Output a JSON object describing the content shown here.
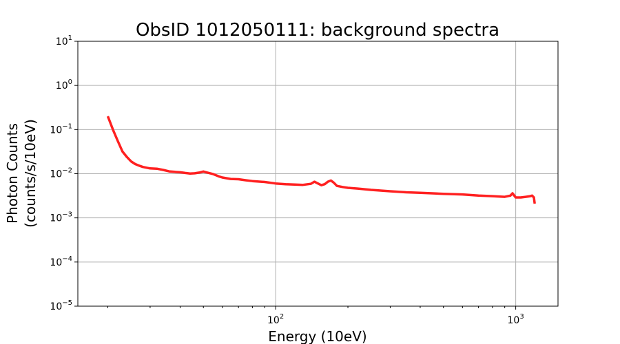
{
  "chart_data": {
    "type": "line",
    "title": "ObsID 1012050111: background spectra",
    "xlabel": "Energy (10eV)",
    "ylabel_line1": "Photon Counts",
    "ylabel_line2": "(counts/s/10eV)",
    "xscale": "log",
    "yscale": "log",
    "xlim": [
      15,
      1500
    ],
    "ylim": [
      1e-05,
      10
    ],
    "grid": true,
    "x_ticks": [
      {
        "base": "10",
        "exp": "2",
        "value": 100
      },
      {
        "base": "10",
        "exp": "3",
        "value": 1000
      }
    ],
    "y_ticks": [
      {
        "base": "10",
        "exp": "1",
        "value": 10
      },
      {
        "base": "10",
        "exp": "0",
        "value": 1
      },
      {
        "base": "10",
        "exp": "−1",
        "value": 0.1
      },
      {
        "base": "10",
        "exp": "−2",
        "value": 0.01
      },
      {
        "base": "10",
        "exp": "−3",
        "value": 0.001
      },
      {
        "base": "10",
        "exp": "−4",
        "value": 0.0001
      },
      {
        "base": "10",
        "exp": "−5",
        "value": 1e-05
      }
    ],
    "series": [
      {
        "color": "#ff2020",
        "x": [
          20,
          21,
          22,
          23,
          24,
          25,
          26,
          27,
          28,
          30,
          32,
          34,
          36,
          38,
          40,
          42,
          44,
          46,
          48,
          50,
          52,
          55,
          58,
          60,
          65,
          70,
          75,
          80,
          90,
          100,
          110,
          120,
          130,
          140,
          145,
          150,
          155,
          160,
          165,
          170,
          175,
          180,
          190,
          200,
          220,
          250,
          280,
          300,
          350,
          400,
          450,
          500,
          600,
          700,
          800,
          900,
          950,
          970,
          1000,
          1050,
          1100,
          1150,
          1170,
          1190,
          1200
        ],
        "y": [
          0.2,
          0.1,
          0.055,
          0.032,
          0.024,
          0.019,
          0.0165,
          0.0152,
          0.0142,
          0.0132,
          0.013,
          0.0122,
          0.0113,
          0.011,
          0.0108,
          0.0104,
          0.0101,
          0.0102,
          0.0106,
          0.0112,
          0.0106,
          0.0098,
          0.0087,
          0.0082,
          0.0076,
          0.0075,
          0.0071,
          0.0068,
          0.0065,
          0.006,
          0.0058,
          0.0057,
          0.0056,
          0.0059,
          0.0066,
          0.006,
          0.0055,
          0.0058,
          0.0066,
          0.007,
          0.0062,
          0.0053,
          0.005,
          0.0048,
          0.0046,
          0.0043,
          0.0041,
          0.004,
          0.0038,
          0.0037,
          0.0036,
          0.0035,
          0.0034,
          0.0032,
          0.0031,
          0.003,
          0.0032,
          0.0036,
          0.0029,
          0.0029,
          0.003,
          0.0031,
          0.0032,
          0.0029,
          0.0021
        ]
      }
    ]
  }
}
